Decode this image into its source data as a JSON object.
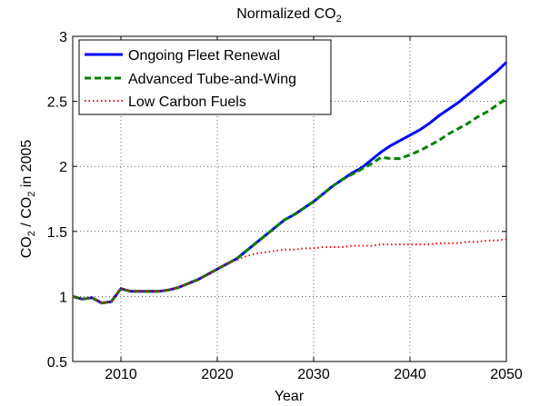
{
  "chart_data": {
    "type": "line",
    "title": "Normalized CO",
    "title_sub": "2",
    "xlabel": "Year",
    "ylabel_parts": [
      "CO",
      "2",
      " / CO",
      "2",
      " in 2005"
    ],
    "xlim": [
      2005,
      2050
    ],
    "ylim": [
      0.5,
      3
    ],
    "xticks": [
      2010,
      2020,
      2030,
      2040,
      2050
    ],
    "yticks": [
      0.5,
      1,
      1.5,
      2,
      2.5,
      3
    ],
    "ytick_labels": [
      "0.5",
      "1",
      "1.5",
      "2",
      "2.5",
      "3"
    ],
    "grid": true,
    "legend_position": "top-left",
    "series": [
      {
        "name": "Ongoing Fleet Renewal",
        "color": "#0000ff",
        "style": "solid",
        "x": [
          2005,
          2006,
          2007,
          2008,
          2009,
          2010,
          2011,
          2012,
          2013,
          2014,
          2015,
          2016,
          2017,
          2018,
          2019,
          2020,
          2021,
          2022,
          2023,
          2024,
          2025,
          2026,
          2027,
          2028,
          2029,
          2030,
          2031,
          2032,
          2033,
          2034,
          2035,
          2036,
          2037,
          2038,
          2039,
          2040,
          2041,
          2042,
          2043,
          2044,
          2045,
          2046,
          2047,
          2048,
          2049,
          2050
        ],
        "y": [
          1.0,
          0.98,
          0.99,
          0.95,
          0.96,
          1.06,
          1.04,
          1.04,
          1.04,
          1.04,
          1.05,
          1.07,
          1.1,
          1.13,
          1.17,
          1.21,
          1.25,
          1.29,
          1.35,
          1.41,
          1.47,
          1.53,
          1.59,
          1.63,
          1.68,
          1.73,
          1.79,
          1.85,
          1.9,
          1.95,
          1.99,
          2.05,
          2.11,
          2.16,
          2.2,
          2.24,
          2.28,
          2.33,
          2.39,
          2.44,
          2.49,
          2.55,
          2.61,
          2.67,
          2.73,
          2.8
        ]
      },
      {
        "name": "Advanced Tube-and-Wing",
        "color": "#008000",
        "style": "dashed",
        "x": [
          2005,
          2006,
          2007,
          2008,
          2009,
          2010,
          2011,
          2012,
          2013,
          2014,
          2015,
          2016,
          2017,
          2018,
          2019,
          2020,
          2021,
          2022,
          2023,
          2024,
          2025,
          2026,
          2027,
          2028,
          2029,
          2030,
          2031,
          2032,
          2033,
          2034,
          2035,
          2036,
          2037,
          2038,
          2039,
          2040,
          2041,
          2042,
          2043,
          2044,
          2045,
          2046,
          2047,
          2048,
          2049,
          2050
        ],
        "y": [
          1.0,
          0.98,
          0.99,
          0.95,
          0.96,
          1.06,
          1.04,
          1.04,
          1.04,
          1.04,
          1.05,
          1.07,
          1.1,
          1.13,
          1.17,
          1.21,
          1.25,
          1.29,
          1.35,
          1.41,
          1.47,
          1.53,
          1.59,
          1.63,
          1.68,
          1.73,
          1.79,
          1.85,
          1.9,
          1.94,
          1.98,
          2.02,
          2.07,
          2.06,
          2.06,
          2.09,
          2.12,
          2.16,
          2.2,
          2.25,
          2.29,
          2.33,
          2.38,
          2.42,
          2.47,
          2.52
        ]
      },
      {
        "name": "Low Carbon Fuels",
        "color": "#ff0000",
        "style": "dotted",
        "x": [
          2005,
          2006,
          2007,
          2008,
          2009,
          2010,
          2011,
          2012,
          2013,
          2014,
          2015,
          2016,
          2017,
          2018,
          2019,
          2020,
          2021,
          2022,
          2023,
          2024,
          2025,
          2026,
          2027,
          2028,
          2029,
          2030,
          2031,
          2032,
          2033,
          2034,
          2035,
          2036,
          2037,
          2038,
          2039,
          2040,
          2041,
          2042,
          2043,
          2044,
          2045,
          2046,
          2047,
          2048,
          2049,
          2050
        ],
        "y": [
          1.0,
          0.98,
          0.99,
          0.95,
          0.96,
          1.06,
          1.04,
          1.04,
          1.04,
          1.04,
          1.05,
          1.07,
          1.1,
          1.13,
          1.17,
          1.21,
          1.25,
          1.28,
          1.31,
          1.33,
          1.34,
          1.35,
          1.36,
          1.36,
          1.37,
          1.37,
          1.38,
          1.38,
          1.38,
          1.39,
          1.39,
          1.39,
          1.4,
          1.4,
          1.4,
          1.4,
          1.4,
          1.4,
          1.41,
          1.41,
          1.41,
          1.42,
          1.42,
          1.43,
          1.43,
          1.44
        ]
      }
    ]
  }
}
